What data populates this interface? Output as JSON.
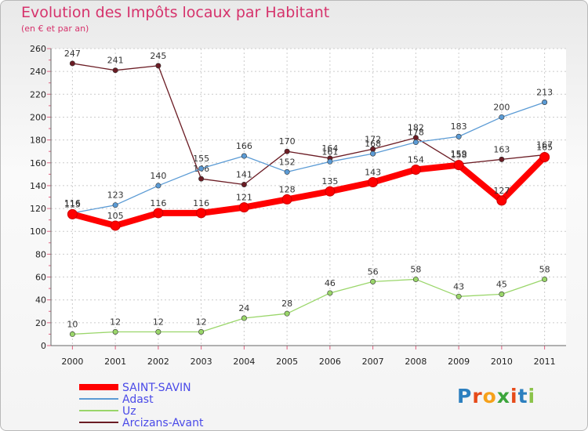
{
  "title": "Evolution des Impôts locaux par Habitant",
  "subtitle": "(en € et par an)",
  "logo_text": "Proxiti",
  "logo_colors": [
    "#2c7fbf",
    "#e64a19",
    "#f6a11a",
    "#3ca53c",
    "#e64a19",
    "#2c7fbf",
    "#8bc34a"
  ],
  "chart_data": {
    "type": "line",
    "title": "Evolution des Impôts locaux par Habitant",
    "subtitle": "(en € et par an)",
    "xlabel": "",
    "ylabel": "",
    "x": [
      "2000",
      "2001",
      "2002",
      "2003",
      "2004",
      "2005",
      "2006",
      "2007",
      "2008",
      "2009",
      "2010",
      "2011"
    ],
    "ylim": [
      0,
      260
    ],
    "yticks": [
      "0",
      "20",
      "40",
      "60",
      "80",
      "100",
      "120",
      "140",
      "160",
      "180",
      "200",
      "220",
      "240",
      "260"
    ],
    "grid": true,
    "legend": "bottom-left",
    "series": [
      {
        "name": "Arcizans-Avant",
        "color": "#6b1c24",
        "values": [
          247,
          241,
          245,
          146,
          141,
          170,
          164,
          172,
          182,
          159,
          163,
          167
        ],
        "labels": [
          "247",
          "241",
          "245",
          "146",
          "141",
          "170",
          "164",
          "172",
          "182",
          "159",
          "163",
          "167"
        ]
      },
      {
        "name": "Adast",
        "color": "#5b9bd5",
        "values": [
          116,
          123,
          140,
          155,
          166,
          152,
          161,
          168,
          178,
          183,
          200,
          213
        ],
        "labels": [
          "116",
          "123",
          "140",
          "155",
          "166",
          "152",
          "161",
          "168",
          "178",
          "183",
          "200",
          "213"
        ]
      },
      {
        "name": "Uz",
        "color": "#9ad66a",
        "values": [
          10,
          12,
          12,
          12,
          24,
          28,
          46,
          56,
          58,
          43,
          45,
          58
        ],
        "labels": [
          "10",
          "12",
          "12",
          "12",
          "24",
          "28",
          "46",
          "56",
          "58",
          "43",
          "45",
          "58"
        ]
      },
      {
        "name": "SAINT-SAVIN",
        "color": "#ff0000",
        "values": [
          115,
          105,
          116,
          116,
          121,
          128,
          135,
          143,
          154,
          158,
          127,
          165
        ],
        "labels": [
          "115",
          "105",
          "116",
          "116",
          "121",
          "128",
          "135",
          "143",
          "154",
          "158",
          "127",
          "165"
        ]
      }
    ],
    "legend_entries": [
      {
        "name": "SAINT-SAVIN",
        "color": "#ff0000",
        "text_color": "#4a4ae8"
      },
      {
        "name": "Adast",
        "color": "#5b9bd5",
        "text_color": "#4a4ae8"
      },
      {
        "name": "Uz",
        "color": "#9ad66a",
        "text_color": "#4a4ae8"
      },
      {
        "name": "Arcizans-Avant",
        "color": "#6b1c24",
        "text_color": "#4a4ae8"
      }
    ]
  }
}
